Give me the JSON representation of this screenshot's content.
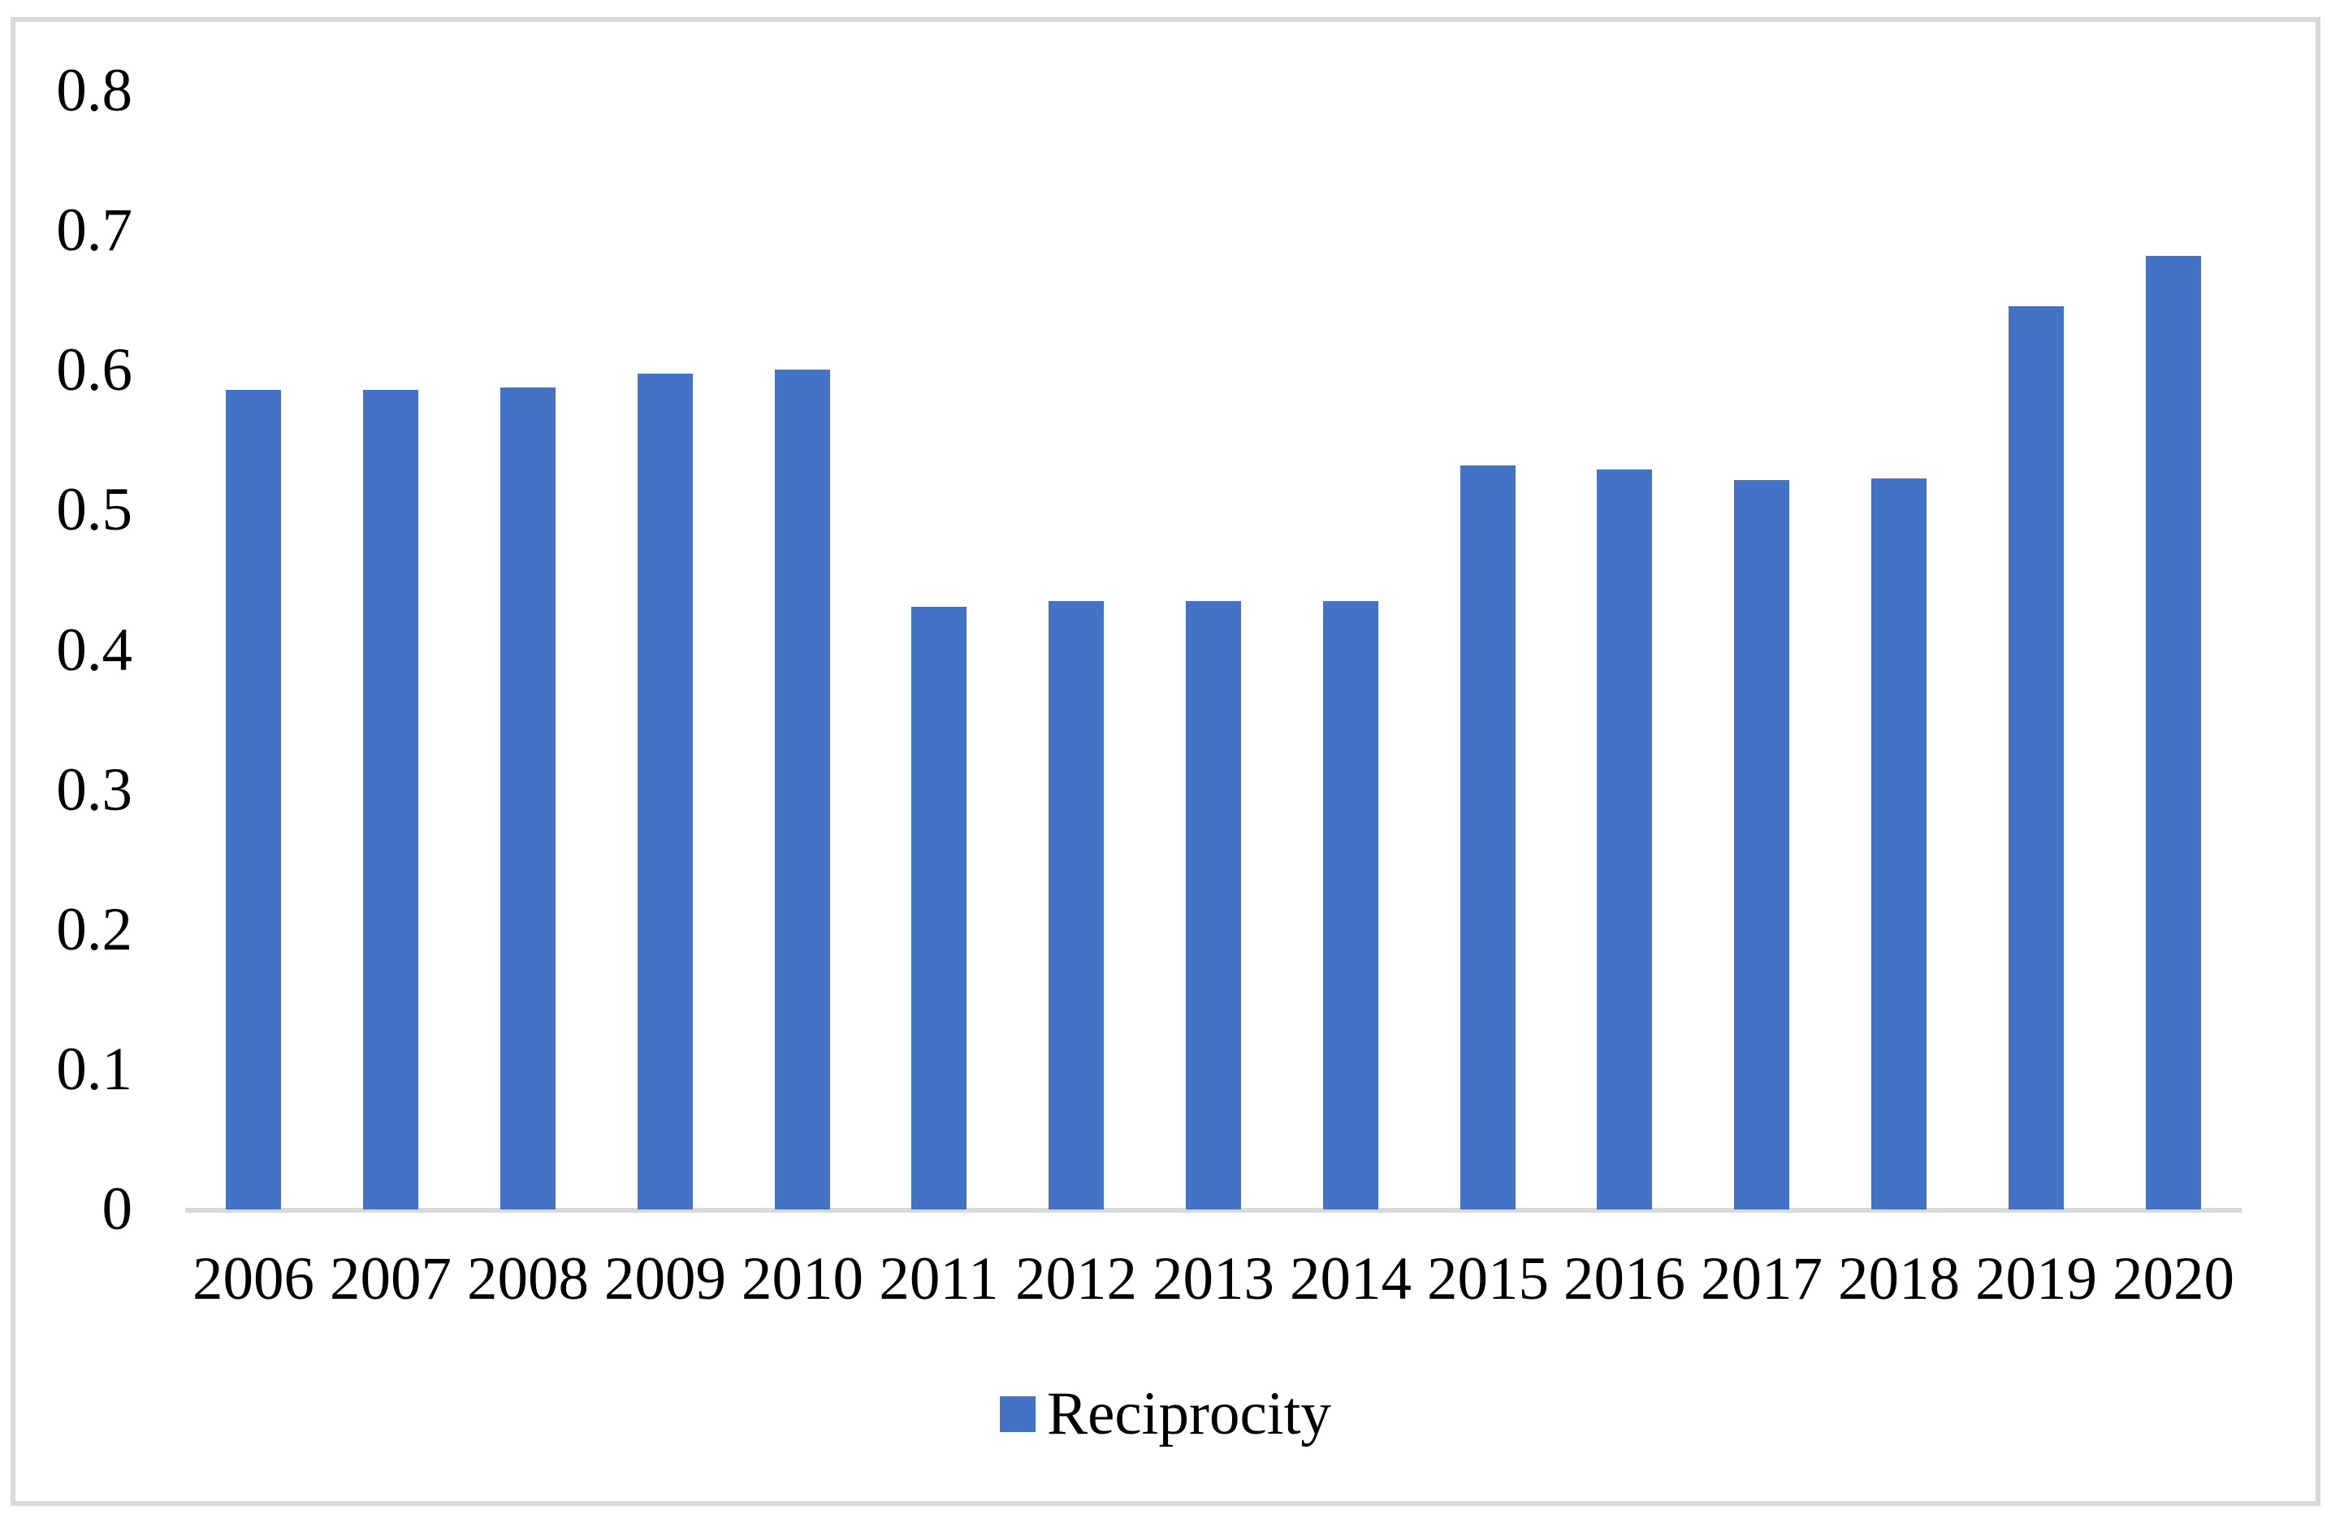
{
  "chart_data": {
    "type": "bar",
    "title": "",
    "xlabel": "",
    "ylabel": "",
    "categories": [
      "2006",
      "2007",
      "2008",
      "2009",
      "2010",
      "2011",
      "2012",
      "2013",
      "2014",
      "2015",
      "2016",
      "2017",
      "2018",
      "2019",
      "2020"
    ],
    "series": [
      {
        "name": "Reciprocity",
        "values": [
          0.586,
          0.586,
          0.588,
          0.598,
          0.601,
          0.431,
          0.435,
          0.435,
          0.435,
          0.532,
          0.529,
          0.522,
          0.523,
          0.646,
          0.682
        ]
      }
    ],
    "ylim": [
      0,
      0.8
    ],
    "yticks": {
      "values": [
        0,
        0.1,
        0.2,
        0.3,
        0.4,
        0.5,
        0.6,
        0.7,
        0.8
      ],
      "labels": [
        "0",
        "0.1",
        "0.2",
        "0.3",
        "0.4",
        "0.5",
        "0.6",
        "0.7",
        "0.8"
      ]
    },
    "grid": false,
    "legend": {
      "position": "bottom",
      "label": "Reciprocity",
      "marker": "square"
    },
    "colors": {
      "bar": "#4472C4",
      "axis_line": "#D9D9D9",
      "frame_border": "#D9D9D9",
      "text": "#000000",
      "background": "#FFFFFF"
    }
  }
}
